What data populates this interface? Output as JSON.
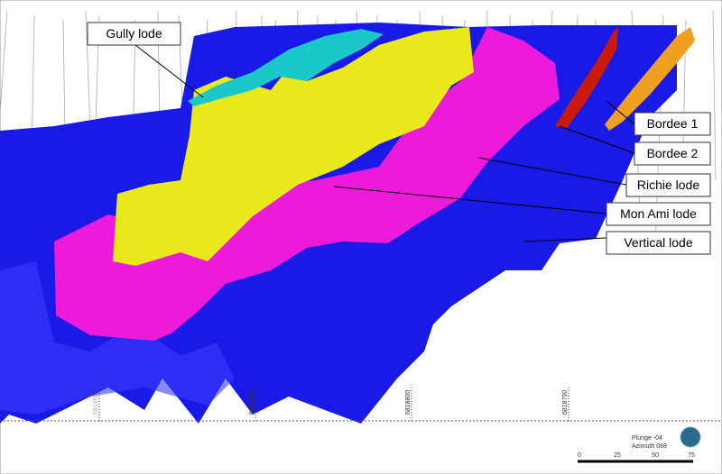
{
  "callouts": [
    "Gully lode",
    "Bordee 1",
    "Bordee 2",
    "Richie lode",
    "Mon Ami lode",
    "Vertical lode"
  ],
  "grid_labels": [
    "6819000",
    "6818900",
    "6818800",
    "6818700"
  ],
  "view": {
    "plunge": "Plunge -04",
    "azimuth": "Azimuth 088"
  },
  "scale_bar": [
    "0",
    "25",
    "50",
    "75"
  ]
}
